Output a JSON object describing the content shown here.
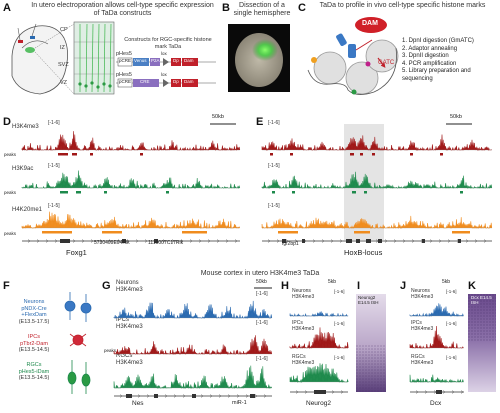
{
  "panels": {
    "A": {
      "letter": "A",
      "title": "In utero electroporation allows cell-type specific expression of TaDa constructs",
      "layers": [
        "CP",
        "IZ",
        "SVZ",
        "VZ"
      ],
      "constructs_title": "Constructs for RGC-specific histone mark TaDa",
      "construct1": {
        "promoter": "pHes5",
        "parts": [
          "pCRE",
          "Venus",
          "P2A",
          "lox",
          "Dp",
          "Dam"
        ]
      },
      "construct2": {
        "promoter": "pHes5",
        "parts": [
          "pCRE",
          "CRE",
          "lox",
          "Dp",
          "Dam"
        ]
      }
    },
    "B": {
      "letter": "B",
      "title": "Dissection of a single hemisphere"
    },
    "C": {
      "letter": "C",
      "title": "TaDa to profile in vivo cell-type specific histone marks",
      "dam_label": "DAM",
      "gatc_label": "GATC",
      "steps": [
        "1. DpnI digestion (GmATC)",
        "2. Adaptor annealing",
        "3. DpnII digestion",
        "4. PCR amplification",
        "5. Library preparation and sequencing"
      ]
    },
    "D": {
      "letter": "D",
      "scale": "50kb",
      "tracks": [
        {
          "name": "H3K4me3",
          "range": "[-1-6]",
          "color": "#a01818",
          "seed": 3
        },
        {
          "name": "H3K9ac",
          "range": "[-1-5]",
          "color": "#1e8a4c",
          "seed": 7
        },
        {
          "name": "H4K20me1",
          "range": "[-1-5]",
          "color": "#f08c1e",
          "seed": 11
        }
      ],
      "peaks_label": "peaks",
      "genes": [
        "Foxg1",
        "5730409E04Rik",
        "1110007C17Rik"
      ]
    },
    "E": {
      "letter": "E",
      "scale": "50kb",
      "tracks": [
        {
          "range": "[-1-6]",
          "color": "#a01818",
          "seed": 5
        },
        {
          "range": "[-1-5]",
          "color": "#1e8a4c",
          "seed": 9
        },
        {
          "range": "[-1-5]",
          "color": "#f08c1e",
          "seed": 13
        }
      ],
      "gene_small": "Igf2bp1",
      "locus": "HoxB-locus"
    },
    "F": {
      "letter": "F",
      "neurons": {
        "name": "Neurons",
        "line1": "pNDX-Cre",
        "line2": "+FlexDam",
        "stage": "(E13.5-17.5)",
        "color": "#2a6ab0"
      },
      "ipcs": {
        "name": "IPCs",
        "line1": "pTbr2-Dam",
        "stage": "(E13.5-14.5)",
        "color": "#c0202a"
      },
      "rgcs": {
        "name": "RGCs",
        "line1": "pHes5-iDam",
        "stage": "(E13.5-14.5)",
        "color": "#1e8a4c"
      }
    },
    "G": {
      "letter": "G",
      "header": "Mouse cortex in utero H3K4me3 TaDa",
      "scale": "50kb",
      "tracks": [
        {
          "name": "Neurons",
          "mark": "H3K4me3",
          "range": "[-1-6]",
          "color": "#2a6ab0",
          "seed": 17
        },
        {
          "name": "IPCs",
          "mark": "H3K4me3",
          "range": "[-1-6]",
          "color": "#a01818",
          "seed": 19
        },
        {
          "name": "RGCs",
          "mark": "H3K4me3",
          "range": "[-1-6]",
          "color": "#1e8a4c",
          "seed": 23
        }
      ],
      "peaks_label": "peaks",
      "genes": [
        "Nes",
        "miR-1"
      ]
    },
    "H": {
      "letter": "H",
      "scale": "5kb",
      "tracks": [
        {
          "name": "Neurons",
          "mark": "H3K4me3",
          "range": "[-1-6]",
          "color": "#2a6ab0"
        },
        {
          "name": "IPCs",
          "mark": "H3K4me3",
          "range": "[-1-6]",
          "color": "#a01818"
        },
        {
          "name": "RGCs",
          "mark": "H3K4me3",
          "range": "[-1-6]",
          "color": "#1e8a4c"
        }
      ],
      "gene": "Neurog2"
    },
    "I": {
      "letter": "I",
      "label": "Neurog2 E14.5 ISH"
    },
    "J": {
      "letter": "J",
      "scale": "5kb",
      "tracks": [
        {
          "name": "Neurons",
          "mark": "H3K4me3",
          "range": "[-1-6]",
          "color": "#2a6ab0"
        },
        {
          "name": "IPCs",
          "mark": "H3K4me3",
          "range": "[-1-6]",
          "color": "#a01818"
        },
        {
          "name": "RGCs",
          "mark": "H3K4me3",
          "range": "[-1-6]",
          "color": "#1e8a4c"
        }
      ],
      "gene": "Dcx"
    },
    "K": {
      "letter": "K",
      "label": "Dcx E14.5 ISH"
    }
  }
}
